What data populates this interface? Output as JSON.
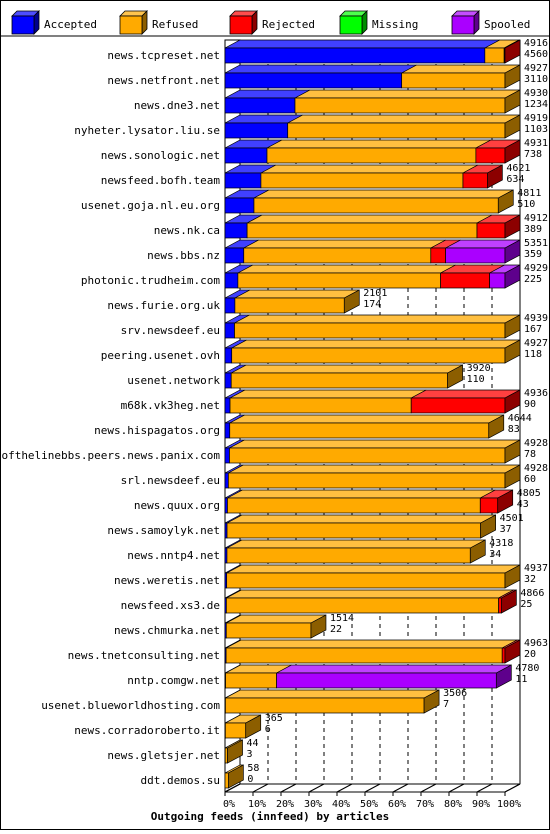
{
  "chart_data": {
    "type": "bar",
    "orientation": "horizontal",
    "stacked": true,
    "percent_stacked": true,
    "xlabel": "Outgoing feeds (innfeed) by articles",
    "xlim": [
      0,
      100
    ],
    "x_ticks": [
      "0%",
      "10%",
      "20%",
      "30%",
      "40%",
      "50%",
      "60%",
      "70%",
      "80%",
      "90%",
      "100%"
    ],
    "grid": true,
    "legend_position": "top",
    "legend": [
      {
        "name": "Accepted",
        "color": "#0000ff"
      },
      {
        "name": "Refused",
        "color": "#ffaa00"
      },
      {
        "name": "Rejected",
        "color": "#ff0000"
      },
      {
        "name": "Missing",
        "color": "#00ff00"
      },
      {
        "name": "Spooled",
        "color": "#aa00ff"
      }
    ],
    "rows": [
      {
        "label": "news.tcpreset.net",
        "offered": "4916",
        "accepted": "4560",
        "pct": [
          92.8,
          6.9,
          0.3,
          0,
          0
        ],
        "extent": 100
      },
      {
        "label": "news.netfront.net",
        "offered": "4927",
        "accepted": "3110",
        "pct": [
          63.1,
          36.9,
          0,
          0,
          0
        ],
        "extent": 100
      },
      {
        "label": "news.dne3.net",
        "offered": "4930",
        "accepted": "1234",
        "pct": [
          25,
          75,
          0,
          0,
          0
        ],
        "extent": 100
      },
      {
        "label": "nyheter.lysator.liu.se",
        "offered": "4919",
        "accepted": "1103",
        "pct": [
          22.4,
          77.6,
          0,
          0,
          0
        ],
        "extent": 100
      },
      {
        "label": "news.sonologic.net",
        "offered": "4931",
        "accepted": "738",
        "pct": [
          15,
          74.6,
          10.4,
          0,
          0
        ],
        "extent": 100
      },
      {
        "label": "newsfeed.bofh.team",
        "offered": "4621",
        "accepted": "634",
        "pct": [
          13.7,
          77,
          9.3,
          0,
          0
        ],
        "extent": 93.7
      },
      {
        "label": "usenet.goja.nl.eu.org",
        "offered": "4811",
        "accepted": "510",
        "pct": [
          10.6,
          89.4,
          0,
          0,
          0
        ],
        "extent": 97.6
      },
      {
        "label": "news.nk.ca",
        "offered": "4912",
        "accepted": "389",
        "pct": [
          7.9,
          82.1,
          10,
          0,
          0
        ],
        "extent": 100
      },
      {
        "label": "news.bbs.nz",
        "offered": "5351",
        "accepted": "359",
        "pct": [
          6.7,
          66.8,
          5.3,
          0,
          21.2
        ],
        "extent": 100
      },
      {
        "label": "photonic.trudheim.com",
        "offered": "4929",
        "accepted": "225",
        "pct": [
          4.6,
          72.4,
          17.5,
          0,
          5.5
        ],
        "extent": 100
      },
      {
        "label": "news.furie.org.uk",
        "offered": "2101",
        "accepted": "174",
        "pct": [
          8.3,
          91.7,
          0,
          0,
          0
        ],
        "extent": 42.6
      },
      {
        "label": "srv.newsdeef.eu",
        "offered": "4939",
        "accepted": "167",
        "pct": [
          3.4,
          96.6,
          0,
          0,
          0
        ],
        "extent": 100
      },
      {
        "label": "peering.usenet.ovh",
        "offered": "4927",
        "accepted": "118",
        "pct": [
          2.4,
          97.6,
          0,
          0,
          0
        ],
        "extent": 100
      },
      {
        "label": "usenet.network",
        "offered": "3920",
        "accepted": "110",
        "pct": [
          2.8,
          97.2,
          0,
          0,
          0
        ],
        "extent": 79.5
      },
      {
        "label": "m68k.vk3heg.net",
        "offered": "4936",
        "accepted": "90",
        "pct": [
          1.8,
          64.7,
          33.5,
          0,
          0
        ],
        "extent": 100
      },
      {
        "label": "news.hispagatos.org",
        "offered": "4644",
        "accepted": "83",
        "pct": [
          1.8,
          98.2,
          0,
          0,
          0
        ],
        "extent": 94.2
      },
      {
        "label": "endofthelinebbs.peers.news.panix.com",
        "offered": "4928",
        "accepted": "78",
        "pct": [
          1.6,
          98.4,
          0,
          0,
          0
        ],
        "extent": 100
      },
      {
        "label": "srl.newsdeef.eu",
        "offered": "4928",
        "accepted": "60",
        "pct": [
          1.2,
          98.8,
          0,
          0,
          0
        ],
        "extent": 100
      },
      {
        "label": "news.quux.org",
        "offered": "4805",
        "accepted": "43",
        "pct": [
          0.9,
          92.7,
          6.4,
          0,
          0
        ],
        "extent": 97.4
      },
      {
        "label": "news.samoylyk.net",
        "offered": "4501",
        "accepted": "37",
        "pct": [
          0.8,
          99.2,
          0,
          0,
          0
        ],
        "extent": 91.3
      },
      {
        "label": "news.nntp4.net",
        "offered": "4318",
        "accepted": "34",
        "pct": [
          0.8,
          99.2,
          0,
          0,
          0
        ],
        "extent": 87.6
      },
      {
        "label": "news.weretis.net",
        "offered": "4937",
        "accepted": "32",
        "pct": [
          0.6,
          99.4,
          0,
          0,
          0
        ],
        "extent": 100
      },
      {
        "label": "newsfeed.xs3.de",
        "offered": "4866",
        "accepted": "25",
        "pct": [
          0.5,
          98.5,
          1,
          0,
          0
        ],
        "extent": 98.7
      },
      {
        "label": "news.chmurka.net",
        "offered": "1514",
        "accepted": "22",
        "pct": [
          1.5,
          98.5,
          0,
          0,
          0
        ],
        "extent": 30.7
      },
      {
        "label": "news.tnetconsulting.net",
        "offered": "4963",
        "accepted": "20",
        "pct": [
          0.4,
          98.6,
          1,
          0,
          0
        ],
        "extent": 100
      },
      {
        "label": "nntp.comgw.net",
        "offered": "4780",
        "accepted": "11",
        "pct": [
          0.2,
          18.8,
          0,
          0,
          81
        ],
        "extent": 96.9
      },
      {
        "label": "usenet.blueworldhosting.com",
        "offered": "3506",
        "accepted": "7",
        "pct": [
          0.2,
          99.8,
          0,
          0,
          0
        ],
        "extent": 71.1
      },
      {
        "label": "news.corradoroberto.it",
        "offered": "365",
        "accepted": "6",
        "pct": [
          1.6,
          98.4,
          0,
          0,
          0
        ],
        "extent": 7.4
      },
      {
        "label": "news.gletsjer.net",
        "offered": "44",
        "accepted": "3",
        "pct": [
          6.8,
          93.2,
          0,
          0,
          0
        ],
        "extent": 0.9
      },
      {
        "label": "ddt.demos.su",
        "offered": "58",
        "accepted": "0",
        "pct": [
          0,
          100,
          0,
          0,
          0
        ],
        "extent": 1.2
      }
    ]
  }
}
